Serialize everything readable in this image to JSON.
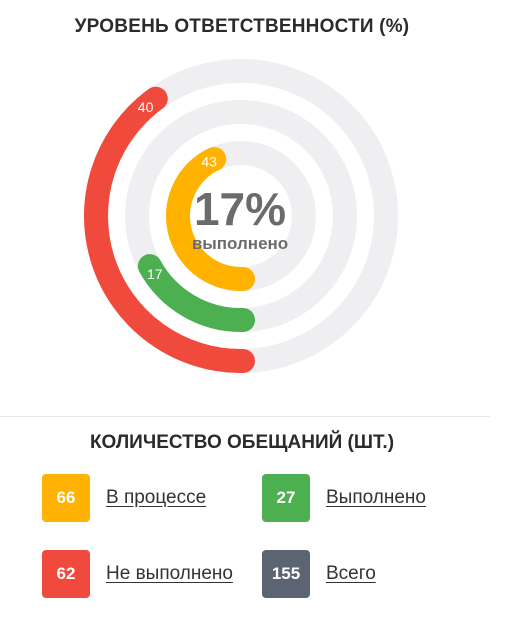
{
  "header": {
    "title": "УРОВЕНЬ ОТВЕТСТВЕННОСТИ (%)"
  },
  "center": {
    "value": "17%",
    "label": "выполнено"
  },
  "chart_data": {
    "type": "radial-bar",
    "title": "УРОВЕНЬ ОТВЕТСТВЕННОСТИ (%)",
    "max": 100,
    "track_color": "#efeff1",
    "series": [
      {
        "label": "40",
        "value": 40,
        "color": "#f04a3d"
      },
      {
        "label": "17",
        "value": 17,
        "color": "#4caf50"
      },
      {
        "label": "43",
        "value": 43,
        "color": "#ffb300"
      }
    ]
  },
  "stats": {
    "title": "КОЛИЧЕСТВО ОБЕЩАНИЙ (ШТ.)",
    "items": [
      {
        "value": "66",
        "label": "В процессе",
        "color": "#ffb300"
      },
      {
        "value": "27",
        "label": "Выполнено",
        "color": "#4caf50"
      },
      {
        "value": "62",
        "label": "Не выполнено",
        "color": "#f04a3d"
      },
      {
        "value": "155",
        "label": "Всего",
        "color": "#5a6473"
      }
    ]
  }
}
